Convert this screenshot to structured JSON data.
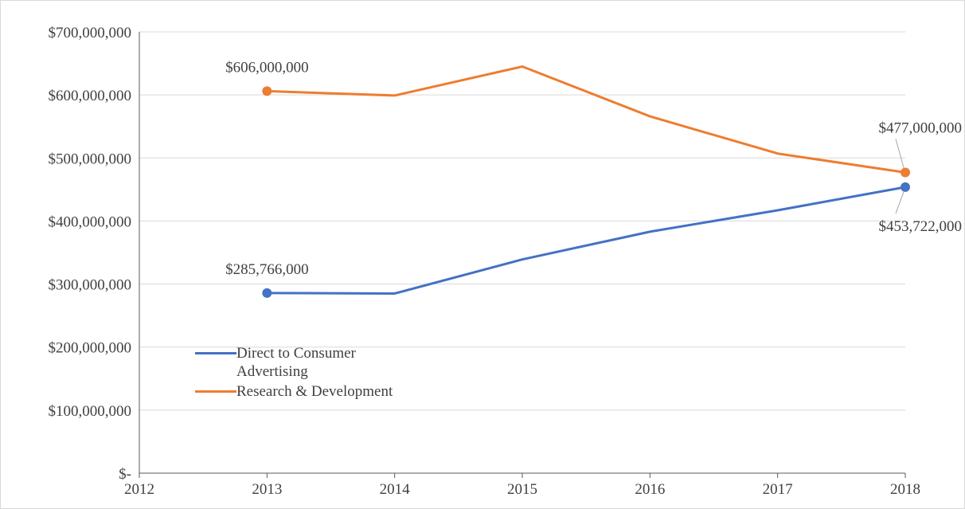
{
  "chart_data": {
    "type": "line",
    "x": [
      2013,
      2014,
      2015,
      2016,
      2017,
      2018
    ],
    "series": [
      {
        "name": "Direct to Consumer Advertising",
        "color": "#4472c4",
        "values": [
          285766000,
          285000000,
          339000000,
          383000000,
          417000000,
          453722000
        ],
        "value_labels": [
          "$285,766,000",
          null,
          null,
          null,
          null,
          "$453,722,000"
        ]
      },
      {
        "name": "Research & Development",
        "color": "#ed7d31",
        "values": [
          606000000,
          599000000,
          645000000,
          566000000,
          507000000,
          477000000
        ],
        "value_labels": [
          "$606,000,000",
          null,
          null,
          null,
          null,
          "$477,000,000"
        ]
      }
    ],
    "xlim": [
      2012,
      2018
    ],
    "xticks": [
      2012,
      2013,
      2014,
      2015,
      2016,
      2017,
      2018
    ],
    "ylim": [
      0,
      700000000
    ],
    "yticks": [
      {
        "value": 0,
        "label": "$-"
      },
      {
        "value": 100000000,
        "label": "$100,000,000"
      },
      {
        "value": 200000000,
        "label": "$200,000,000"
      },
      {
        "value": 300000000,
        "label": "$300,000,000"
      },
      {
        "value": 400000000,
        "label": "$400,000,000"
      },
      {
        "value": 500000000,
        "label": "$500,000,000"
      },
      {
        "value": 600000000,
        "label": "$600,000,000"
      },
      {
        "value": 700000000,
        "label": "$700,000,000"
      }
    ],
    "grid": true,
    "legend": "center left"
  }
}
